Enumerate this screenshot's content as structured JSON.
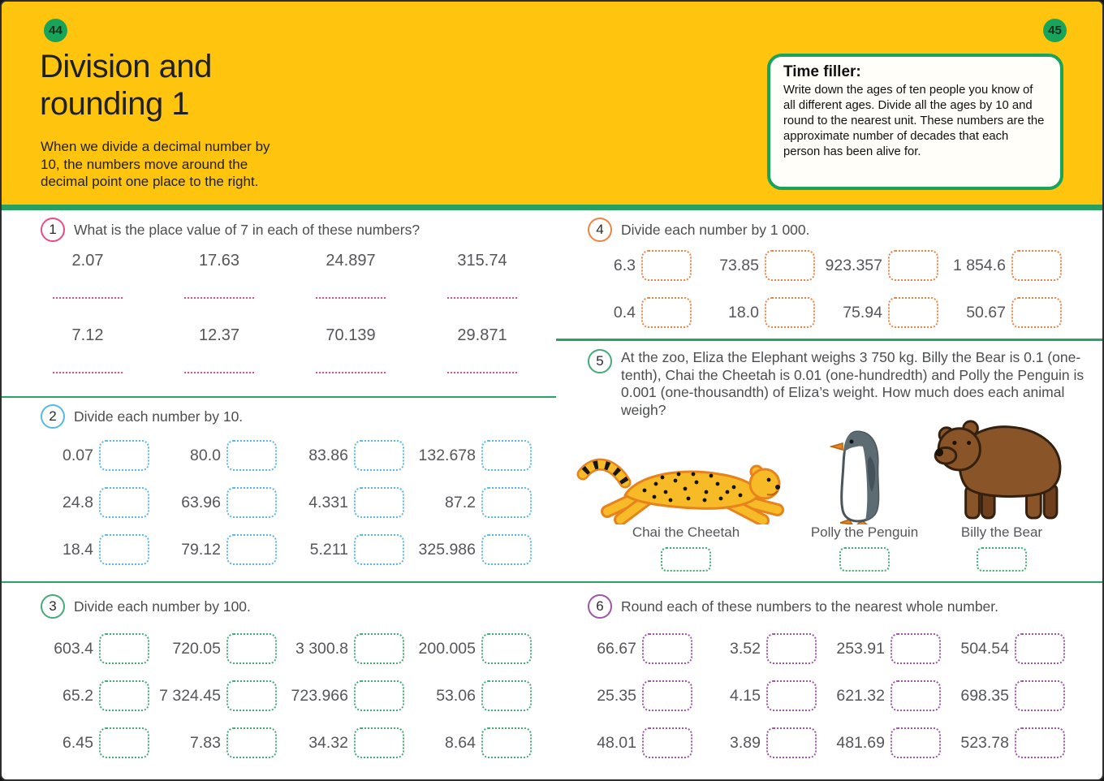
{
  "page": {
    "left_page_number": "44",
    "right_page_number": "45",
    "title_line1": "Division and",
    "title_line2": "rounding 1",
    "intro": "When we divide a decimal number by 10, the numbers move around the decimal point one place to the right.",
    "colors": {
      "header_yellow": "#ffc40d",
      "accent_green": "#18a45b",
      "number_gray": "#55565a",
      "text_dark": "#20201e"
    }
  },
  "time_filler": {
    "title": "Time filler:",
    "body": "Write down the ages of ten people you know of all different ages. Divide all the ages by 10 and round to the nearest unit. These numbers are the approximate number of decades that each person has been alive for."
  },
  "questions": {
    "q1": {
      "number": "1",
      "accent": "#e94b87",
      "prompt": "What is the place value of 7 in each of these numbers?",
      "rows": [
        [
          "2.07",
          "17.63",
          "24.897",
          "315.74"
        ],
        [
          "7.12",
          "12.37",
          "70.139",
          "29.871"
        ]
      ]
    },
    "q2": {
      "number": "2",
      "accent": "#5ab8e6",
      "prompt": "Divide each number by 10.",
      "rows": [
        [
          "0.07",
          "80.0",
          "83.86",
          "132.678"
        ],
        [
          "24.8",
          "63.96",
          "4.331",
          "87.2"
        ],
        [
          "18.4",
          "79.12",
          "5.211",
          "325.986"
        ]
      ]
    },
    "q3": {
      "number": "3",
      "accent": "#44ab78",
      "prompt": "Divide each number by 100.",
      "rows": [
        [
          "603.4",
          "720.05",
          "3 300.8",
          "200.005"
        ],
        [
          "65.2",
          "7 324.45",
          "723.966",
          "53.06"
        ],
        [
          "6.45",
          "7.83",
          "34.32",
          "8.64"
        ]
      ]
    },
    "q4": {
      "number": "4",
      "accent": "#ee8442",
      "prompt": "Divide each number by 1 000.",
      "rows": [
        [
          "6.3",
          "73.85",
          "923.357",
          "1 854.6"
        ],
        [
          "0.4",
          "18.0",
          "75.94",
          "50.67"
        ]
      ]
    },
    "q5": {
      "number": "5",
      "accent": "#44ab78",
      "prompt": "At the zoo, Eliza the Elephant weighs 3 750 kg. Billy the Bear is 0.1 (one-tenth), Chai the Cheetah is 0.01 (one-hundredth) and Polly the Penguin is 0.001 (one-thousandth) of Eliza’s weight. How much does each animal weigh?",
      "animals": [
        {
          "label": "Chai the Cheetah"
        },
        {
          "label": "Polly the Penguin"
        },
        {
          "label": "Billy the Bear"
        }
      ]
    },
    "q6": {
      "number": "6",
      "accent": "#9c56a4",
      "prompt": "Round each of these numbers to the nearest whole number.",
      "rows": [
        [
          "66.67",
          "3.52",
          "253.91",
          "504.54"
        ],
        [
          "25.35",
          "4.15",
          "621.32",
          "698.35"
        ],
        [
          "48.01",
          "3.89",
          "481.69",
          "523.78"
        ]
      ]
    }
  }
}
